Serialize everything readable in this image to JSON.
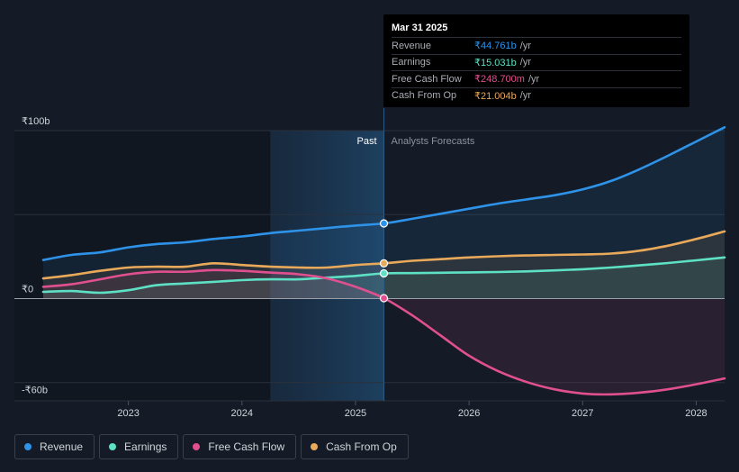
{
  "tooltip": {
    "date": "Mar 31 2025",
    "rows": [
      {
        "label": "Revenue",
        "value": "₹44.761b",
        "unit": "/yr",
        "color": "#2e93e8"
      },
      {
        "label": "Earnings",
        "value": "₹15.031b",
        "unit": "/yr",
        "color": "#5ee0c4"
      },
      {
        "label": "Free Cash Flow",
        "value": "₹248.700m",
        "unit": "/yr",
        "color": "#e0508f"
      },
      {
        "label": "Cash From Op",
        "value": "₹21.004b",
        "unit": "/yr",
        "color": "#e9a95b"
      }
    ]
  },
  "legend": [
    {
      "label": "Revenue",
      "color": "#2e93e8"
    },
    {
      "label": "Earnings",
      "color": "#5ee0c4"
    },
    {
      "label": "Free Cash Flow",
      "color": "#e0508f"
    },
    {
      "label": "Cash From Op",
      "color": "#e9a95b"
    }
  ],
  "chart_data": {
    "type": "line",
    "past_label": "Past",
    "forecast_label": "Analysts Forecasts",
    "y_tick_labels": [
      "₹100b",
      "₹0",
      "-₹60b"
    ],
    "y_ticks": [
      100,
      0,
      -60
    ],
    "ylim": [
      -60,
      100
    ],
    "x_tick_labels": [
      "2023",
      "2024",
      "2025",
      "2026",
      "2027",
      "2028"
    ],
    "x_ticks": [
      2023,
      2024,
      2025,
      2026,
      2027,
      2028
    ],
    "xlim": [
      2022.25,
      2028.25
    ],
    "past_shade_start": 2024.25,
    "forecast_start": 2025.25,
    "grid": true,
    "series": [
      {
        "name": "Revenue",
        "color": "#2e93e8",
        "x": [
          2022.25,
          2022.5,
          2022.75,
          2023.0,
          2023.25,
          2023.5,
          2023.75,
          2024.0,
          2024.25,
          2024.5,
          2024.75,
          2025.0,
          2025.25,
          2025.5,
          2025.75,
          2026.0,
          2026.25,
          2026.5,
          2026.75,
          2027.0,
          2027.25,
          2027.5,
          2027.75,
          2028.0,
          2028.25
        ],
        "y": [
          23,
          26,
          27.5,
          30.5,
          32.5,
          33.5,
          35.5,
          37,
          39,
          40.5,
          42,
          43.5,
          44.761,
          47.5,
          50.5,
          53.5,
          56.5,
          59,
          61.5,
          65,
          70,
          77,
          85,
          93.5,
          102
        ]
      },
      {
        "name": "Earnings",
        "color": "#5ee0c4",
        "x": [
          2022.25,
          2022.5,
          2022.75,
          2023.0,
          2023.25,
          2023.5,
          2023.75,
          2024.0,
          2024.25,
          2024.5,
          2024.75,
          2025.0,
          2025.25,
          2025.5,
          2025.75,
          2026.0,
          2026.25,
          2026.5,
          2026.75,
          2027.0,
          2027.25,
          2027.5,
          2027.75,
          2028.0,
          2028.25
        ],
        "y": [
          4,
          4.5,
          3.5,
          5,
          8,
          9,
          10,
          11,
          11.5,
          11.5,
          12.5,
          13.5,
          15.031,
          15.2,
          15.4,
          15.6,
          15.8,
          16.2,
          16.8,
          17.5,
          18.5,
          19.8,
          21.2,
          22.8,
          24.5
        ]
      },
      {
        "name": "Free Cash Flow",
        "color": "#e0508f",
        "x": [
          2022.25,
          2022.5,
          2022.75,
          2023.0,
          2023.25,
          2023.5,
          2023.75,
          2024.0,
          2024.25,
          2024.5,
          2024.75,
          2025.0,
          2025.25,
          2025.5,
          2025.75,
          2026.0,
          2026.25,
          2026.5,
          2026.75,
          2027.0,
          2027.25,
          2027.5,
          2027.75,
          2028.0,
          2028.25
        ],
        "y": [
          7,
          8.5,
          11.5,
          14.5,
          16,
          16,
          17,
          16.5,
          15.5,
          14.5,
          12,
          7,
          0.249,
          -10,
          -22,
          -34,
          -43,
          -49.5,
          -54,
          -56.5,
          -57,
          -56,
          -54,
          -51,
          -47.5
        ]
      },
      {
        "name": "Cash From Op",
        "color": "#e9a95b",
        "x": [
          2022.25,
          2022.5,
          2022.75,
          2023.0,
          2023.25,
          2023.5,
          2023.75,
          2024.0,
          2024.25,
          2024.5,
          2024.75,
          2025.0,
          2025.25,
          2025.5,
          2025.75,
          2026.0,
          2026.25,
          2026.5,
          2026.75,
          2027.0,
          2027.25,
          2027.5,
          2027.75,
          2028.0,
          2028.25
        ],
        "y": [
          12,
          14,
          16.5,
          18.5,
          19,
          19,
          21,
          20,
          19,
          18.5,
          18.5,
          20,
          21.004,
          22.5,
          23.5,
          24.5,
          25.2,
          25.7,
          26,
          26.3,
          26.8,
          28.5,
          31.5,
          35.5,
          40
        ]
      }
    ]
  }
}
